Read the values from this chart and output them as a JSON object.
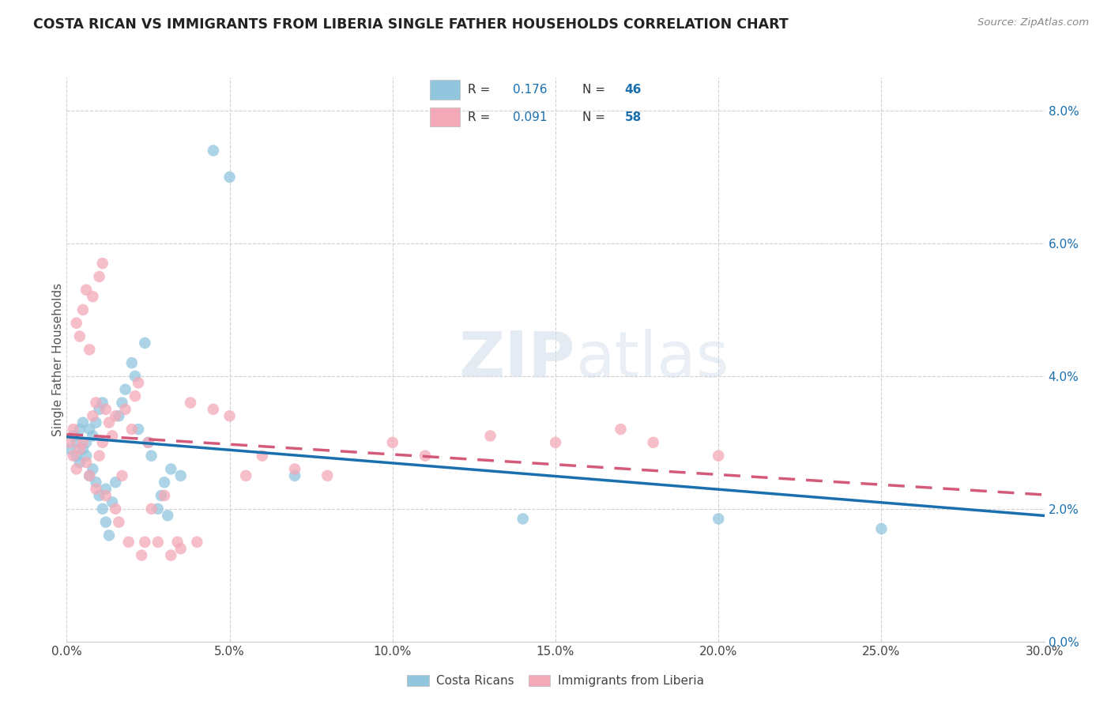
{
  "title": "COSTA RICAN VS IMMIGRANTS FROM LIBERIA SINGLE FATHER HOUSEHOLDS CORRELATION CHART",
  "source": "Source: ZipAtlas.com",
  "xlabel_tick_vals": [
    0,
    5,
    10,
    15,
    20,
    25,
    30
  ],
  "ylabel_tick_vals": [
    0,
    2,
    4,
    6,
    8
  ],
  "xlim": [
    0,
    30
  ],
  "ylim": [
    0,
    8.5
  ],
  "ylabel": "Single Father Households",
  "legend_labels": [
    "Costa Ricans",
    "Immigrants from Liberia"
  ],
  "r_blue": 0.176,
  "n_blue": 46,
  "r_pink": 0.091,
  "n_pink": 58,
  "blue_color": "#92c5de",
  "pink_color": "#f4a9b8",
  "blue_line_color": "#1a6faf",
  "pink_line_color": "#d45a7a",
  "background_color": "#ffffff",
  "watermark_zip": "ZIP",
  "watermark_atlas": "atlas",
  "blue_points": [
    [
      0.1,
      2.9
    ],
    [
      0.2,
      3.1
    ],
    [
      0.3,
      2.8
    ],
    [
      0.3,
      3.0
    ],
    [
      0.4,
      2.7
    ],
    [
      0.4,
      3.2
    ],
    [
      0.5,
      2.9
    ],
    [
      0.5,
      3.3
    ],
    [
      0.6,
      2.8
    ],
    [
      0.6,
      3.0
    ],
    [
      0.7,
      2.5
    ],
    [
      0.7,
      3.2
    ],
    [
      0.8,
      2.6
    ],
    [
      0.8,
      3.1
    ],
    [
      0.9,
      2.4
    ],
    [
      0.9,
      3.3
    ],
    [
      1.0,
      2.2
    ],
    [
      1.0,
      3.5
    ],
    [
      1.1,
      2.0
    ],
    [
      1.1,
      3.6
    ],
    [
      1.2,
      1.8
    ],
    [
      1.2,
      2.3
    ],
    [
      1.3,
      1.6
    ],
    [
      1.4,
      2.1
    ],
    [
      1.5,
      2.4
    ],
    [
      1.6,
      3.4
    ],
    [
      1.7,
      3.6
    ],
    [
      1.8,
      3.8
    ],
    [
      2.0,
      4.2
    ],
    [
      2.1,
      4.0
    ],
    [
      2.2,
      3.2
    ],
    [
      2.4,
      4.5
    ],
    [
      2.5,
      3.0
    ],
    [
      2.6,
      2.8
    ],
    [
      2.8,
      2.0
    ],
    [
      2.9,
      2.2
    ],
    [
      3.0,
      2.4
    ],
    [
      3.1,
      1.9
    ],
    [
      3.2,
      2.6
    ],
    [
      3.5,
      2.5
    ],
    [
      4.5,
      7.4
    ],
    [
      5.0,
      7.0
    ],
    [
      14.0,
      1.85
    ],
    [
      20.0,
      1.85
    ],
    [
      25.0,
      1.7
    ],
    [
      7.0,
      2.5
    ]
  ],
  "pink_points": [
    [
      0.1,
      3.0
    ],
    [
      0.2,
      2.8
    ],
    [
      0.2,
      3.2
    ],
    [
      0.3,
      2.6
    ],
    [
      0.3,
      4.8
    ],
    [
      0.4,
      2.9
    ],
    [
      0.4,
      4.6
    ],
    [
      0.5,
      3.0
    ],
    [
      0.5,
      5.0
    ],
    [
      0.6,
      2.7
    ],
    [
      0.6,
      5.3
    ],
    [
      0.7,
      2.5
    ],
    [
      0.7,
      4.4
    ],
    [
      0.8,
      3.4
    ],
    [
      0.8,
      5.2
    ],
    [
      0.9,
      2.3
    ],
    [
      0.9,
      3.6
    ],
    [
      1.0,
      2.8
    ],
    [
      1.0,
      5.5
    ],
    [
      1.1,
      3.0
    ],
    [
      1.1,
      5.7
    ],
    [
      1.2,
      2.2
    ],
    [
      1.2,
      3.5
    ],
    [
      1.3,
      3.3
    ],
    [
      1.4,
      3.1
    ],
    [
      1.5,
      2.0
    ],
    [
      1.5,
      3.4
    ],
    [
      1.6,
      1.8
    ],
    [
      1.7,
      2.5
    ],
    [
      1.8,
      3.5
    ],
    [
      1.9,
      1.5
    ],
    [
      2.0,
      3.2
    ],
    [
      2.1,
      3.7
    ],
    [
      2.2,
      3.9
    ],
    [
      2.3,
      1.3
    ],
    [
      2.4,
      1.5
    ],
    [
      2.5,
      3.0
    ],
    [
      2.6,
      2.0
    ],
    [
      2.8,
      1.5
    ],
    [
      3.0,
      2.2
    ],
    [
      3.2,
      1.3
    ],
    [
      3.4,
      1.5
    ],
    [
      3.5,
      1.4
    ],
    [
      3.8,
      3.6
    ],
    [
      4.0,
      1.5
    ],
    [
      4.5,
      3.5
    ],
    [
      5.0,
      3.4
    ],
    [
      5.5,
      2.5
    ],
    [
      6.0,
      2.8
    ],
    [
      7.0,
      2.6
    ],
    [
      8.0,
      2.5
    ],
    [
      10.0,
      3.0
    ],
    [
      11.0,
      2.8
    ],
    [
      13.0,
      3.1
    ],
    [
      15.0,
      3.0
    ],
    [
      17.0,
      3.2
    ],
    [
      18.0,
      3.0
    ],
    [
      20.0,
      2.8
    ]
  ]
}
